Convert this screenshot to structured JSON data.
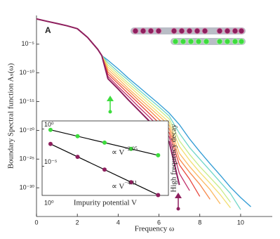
{
  "chart_data": [
    {
      "type": "line",
      "panel_label": "A",
      "xlabel": "Frequency ω",
      "ylabel": "Boundary Spectral function Aₛ(ω)",
      "log_y": true,
      "x": [
        0,
        0.5,
        1,
        1.5,
        2,
        2.5,
        3,
        3.2,
        3.5,
        4,
        4.5,
        5,
        5.5,
        6,
        6.5,
        7,
        7.5,
        8,
        8.5,
        9,
        9.5,
        10,
        10.5
      ],
      "xlim": [
        0,
        11.55
      ],
      "xticks": [
        0,
        2,
        4,
        6,
        8,
        10
      ],
      "ylim": [
        1e-35,
        1
      ],
      "yticks": [
        {
          "value": 1e-05,
          "label": "10⁻⁵"
        },
        {
          "value": 1e-10,
          "label": "10⁻¹⁰"
        },
        {
          "value": 1e-15,
          "label": "10⁻¹⁵"
        },
        {
          "value": 1e-20,
          "label": "10⁻²⁰"
        },
        {
          "value": 1e-25,
          "label": "10⁻²⁵"
        },
        {
          "value": 1e-30,
          "label": "10⁻³⁰"
        }
      ],
      "series": [
        {
          "color": "#2f9bd4",
          "values": [
            0.251,
            0.1,
            0.0398,
            0.0158,
            0.00501,
            0.000158,
            1.26e-06,
            1e-07,
            1.58e-08,
            5.01e-10,
            1.26e-11,
            3.98e-13,
            1.26e-14,
            3.98e-16,
            1e-17,
            1e-19,
            3.16e-22,
            2e-24,
            1.58e-26,
            1.58e-28,
            1.26e-30,
            2e-32,
            5.01e-34
          ]
        },
        {
          "color": "#6fd6c8",
          "values": [
            0.251,
            0.1,
            0.0398,
            0.0158,
            0.00501,
            0.000158,
            1.26e-06,
            1e-07,
            6.31e-09,
            1.58e-10,
            5.01e-12,
            1.26e-13,
            3.98e-15,
            1.26e-16,
            3.16e-18,
            3.16e-21,
            1e-23,
            1e-25,
            1e-27,
            1e-29,
            1e-31,
            1.58e-34,
            null
          ]
        },
        {
          "color": "#c8ec8a",
          "values": [
            0.251,
            0.1,
            0.0398,
            0.0158,
            0.00501,
            0.000158,
            1.26e-06,
            1e-07,
            2.51e-09,
            6.31e-11,
            1.58e-12,
            5.01e-14,
            1.26e-15,
            3.98e-17,
            1e-18,
            1.58e-22,
            6.31e-25,
            5.01e-27,
            6.31e-29,
            7.94e-31,
            3.16e-33,
            null,
            null
          ]
        },
        {
          "color": "#f3de72",
          "values": [
            0.251,
            0.1,
            0.0398,
            0.0158,
            0.00501,
            0.000158,
            1.26e-06,
            1e-07,
            1e-09,
            2.51e-11,
            6.31e-13,
            1.58e-14,
            3.98e-16,
            1e-17,
            2.51e-19,
            1.58e-23,
            6.31e-26,
            5.01e-28,
            6.31e-30,
            6.31e-32,
            3.16e-34,
            null,
            null
          ]
        },
        {
          "color": "#fbb860",
          "values": [
            0.251,
            0.1,
            0.0398,
            0.0158,
            0.00501,
            0.000158,
            1.26e-06,
            1e-07,
            3.98e-10,
            1e-11,
            2e-13,
            5.01e-15,
            1.26e-16,
            3.16e-18,
            7.94e-20,
            1e-24,
            5.01e-27,
            5.01e-29,
            5.01e-31,
            1.58e-33,
            null,
            null,
            null
          ]
        },
        {
          "color": "#f7894a",
          "values": [
            0.251,
            0.1,
            0.0398,
            0.0158,
            0.00501,
            0.000158,
            1.26e-06,
            1e-07,
            1.58e-10,
            3.16e-12,
            7.94e-14,
            1.58e-15,
            3.98e-17,
            7.94e-19,
            2e-20,
            1e-25,
            5.01e-28,
            3.98e-30,
            1e-32,
            null,
            null,
            null,
            null
          ]
        },
        {
          "color": "#e8463c",
          "values": [
            0.251,
            0.1,
            0.0398,
            0.0158,
            0.00501,
            0.000158,
            1.26e-06,
            1e-07,
            6.31e-11,
            1.26e-12,
            2.51e-14,
            5.01e-16,
            1e-17,
            2e-19,
            3.98e-21,
            1e-26,
            3.16e-29,
            3.16e-32,
            null,
            null,
            null,
            null,
            null
          ]
        },
        {
          "color": "#c2306a",
          "values": [
            0.251,
            0.1,
            0.0398,
            0.0158,
            0.00501,
            0.000158,
            1.26e-06,
            1e-07,
            2.51e-11,
            3.98e-13,
            7.94e-15,
            1.26e-16,
            2.51e-18,
            3.98e-20,
            7.94e-22,
            3.16e-28,
            3.16e-31,
            null,
            null,
            null,
            null,
            null,
            null
          ]
        },
        {
          "color": "#8e1f5e",
          "values": [
            0.251,
            0.1,
            0.0398,
            0.0158,
            0.00501,
            0.000158,
            1.26e-06,
            1e-07,
            1e-11,
            1.58e-13,
            2e-15,
            3.16e-17,
            5.01e-19,
            6.31e-21,
            1e-22,
            3.16e-30,
            null,
            null,
            null,
            null,
            null,
            null,
            null
          ]
        }
      ]
    },
    {
      "type": "scatter",
      "xlabel": "Impurity potential V",
      "ylabel": "High frequency decay",
      "log_x": true,
      "log_y": true,
      "xlim": [
        1,
        91
      ],
      "xticks": [
        {
          "value": 1,
          "label": "10⁰"
        }
      ],
      "ylim": [
        1.2e-09,
        12.6
      ],
      "yticks": [
        {
          "value": 1,
          "label": "10⁰"
        },
        {
          "value": 1e-05,
          "label": "10⁻⁵"
        }
      ],
      "series": [
        {
          "color": "#3ddc3d",
          "x": [
            1.35,
            3.55,
            9.3,
            24,
            63
          ],
          "values": [
            0.79,
            0.11,
            0.015,
            0.0022,
            0.0003
          ],
          "fit_label": {
            "text": "∝ V",
            "exponent": "−2.05"
          }
        },
        {
          "color": "#8e1f5e",
          "x": [
            1.35,
            3.55,
            9.3,
            24,
            63
          ],
          "values": [
            0.01,
            0.000186,
            3.55e-06,
            7.2e-08,
            1.35e-09
          ],
          "fit_label": {
            "text": "∝ V",
            "exponent": "−4.11"
          }
        }
      ]
    }
  ]
}
